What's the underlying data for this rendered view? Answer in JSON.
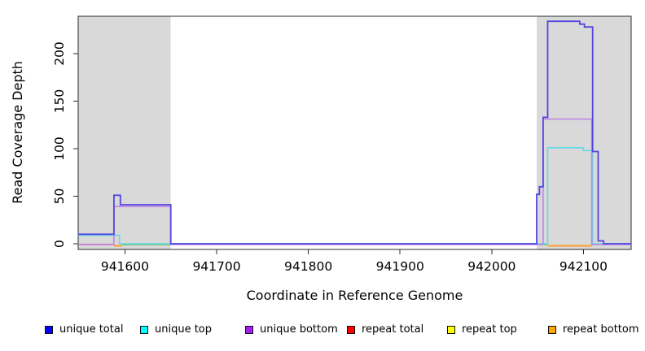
{
  "chart_data": {
    "type": "line",
    "title": "",
    "xlabel": "Coordinate in Reference Genome",
    "ylabel": "Read Coverage Depth",
    "xlim": [
      941549,
      942152
    ],
    "ylim": [
      0,
      240
    ],
    "x_ticks": [
      941600,
      941700,
      941800,
      941900,
      942000,
      942100
    ],
    "y_ticks": [
      0,
      50,
      100,
      150,
      200
    ],
    "grid": false,
    "legend_position": "bottom",
    "shaded_regions": [
      {
        "name": "repeat-region-left",
        "x0": 941549,
        "x1": 941650,
        "color": "#d9d9d9"
      },
      {
        "name": "repeat-region-right",
        "x0": 942049,
        "x1": 942152,
        "color": "#d9d9d9"
      }
    ],
    "series": [
      {
        "name": "repeat top",
        "line_color": "#63bd63",
        "segments": [
          [
            [
              941597,
              0
            ],
            [
              941650,
              0
            ]
          ],
          [
            [
              942049,
              0
            ],
            [
              942061,
              0
            ]
          ]
        ]
      },
      {
        "name": "repeat bottom",
        "line_color": "#ff9d2e",
        "segments": [
          [
            [
              941588,
              0
            ],
            [
              941597,
              0
            ]
          ],
          [
            [
              942061,
              0
            ],
            [
              942109,
              0
            ]
          ]
        ]
      },
      {
        "name": "repeat total",
        "line_color": "#e8506a",
        "segments": [
          [
            [
              941549,
              1
            ],
            [
              941588,
              1
            ]
          ],
          [
            [
              942109,
              1
            ],
            [
              942123,
              1
            ]
          ]
        ]
      },
      {
        "name": "unique top",
        "line_color": "#5edce8",
        "segments": [
          [
            [
              941549,
              9
            ],
            [
              941594,
              9
            ],
            [
              941594,
              0
            ],
            [
              942061,
              0
            ],
            [
              942061,
              101
            ],
            [
              942100,
              101
            ],
            [
              942100,
              98
            ],
            [
              942110,
              98
            ],
            [
              942110,
              0
            ],
            [
              942152,
              0
            ]
          ]
        ]
      },
      {
        "name": "unique bottom",
        "line_color": "#c184e8",
        "segments": [
          [
            [
              941549,
              0
            ],
            [
              941588,
              0
            ],
            [
              941588,
              40
            ],
            [
              941650,
              40
            ],
            [
              941650,
              0
            ],
            [
              942056,
              0
            ],
            [
              942056,
              132
            ],
            [
              942109,
              132
            ],
            [
              942109,
              0
            ],
            [
              942152,
              0
            ]
          ]
        ]
      },
      {
        "name": "unique total",
        "line_color": "#5246df",
        "segments": [
          [
            [
              941549,
              10
            ],
            [
              941588,
              10
            ],
            [
              941588,
              51
            ],
            [
              941595,
              51
            ],
            [
              941595,
              41
            ],
            [
              941650,
              41
            ],
            [
              941650,
              0
            ],
            [
              942049,
              0
            ],
            [
              942049,
              52
            ],
            [
              942052,
              52
            ],
            [
              942052,
              60
            ],
            [
              942056,
              60
            ],
            [
              942056,
              133
            ],
            [
              942061,
              133
            ],
            [
              942061,
              234
            ],
            [
              942096,
              234
            ],
            [
              942096,
              231
            ],
            [
              942101,
              231
            ],
            [
              942101,
              228
            ],
            [
              942110,
              228
            ],
            [
              942110,
              97
            ],
            [
              942116,
              97
            ],
            [
              942116,
              3
            ],
            [
              942122,
              3
            ],
            [
              942122,
              0
            ],
            [
              942152,
              0
            ]
          ]
        ]
      }
    ]
  },
  "legend": {
    "items": [
      {
        "label": "unique total",
        "color": "#0000ff"
      },
      {
        "label": "unique top",
        "color": "#00ffff"
      },
      {
        "label": "unique bottom",
        "color": "#a020f0"
      },
      {
        "label": "repeat total",
        "color": "#ff0000"
      },
      {
        "label": "repeat top",
        "color": "#ffff00"
      },
      {
        "label": "repeat bottom",
        "color": "#ffa500"
      }
    ]
  }
}
